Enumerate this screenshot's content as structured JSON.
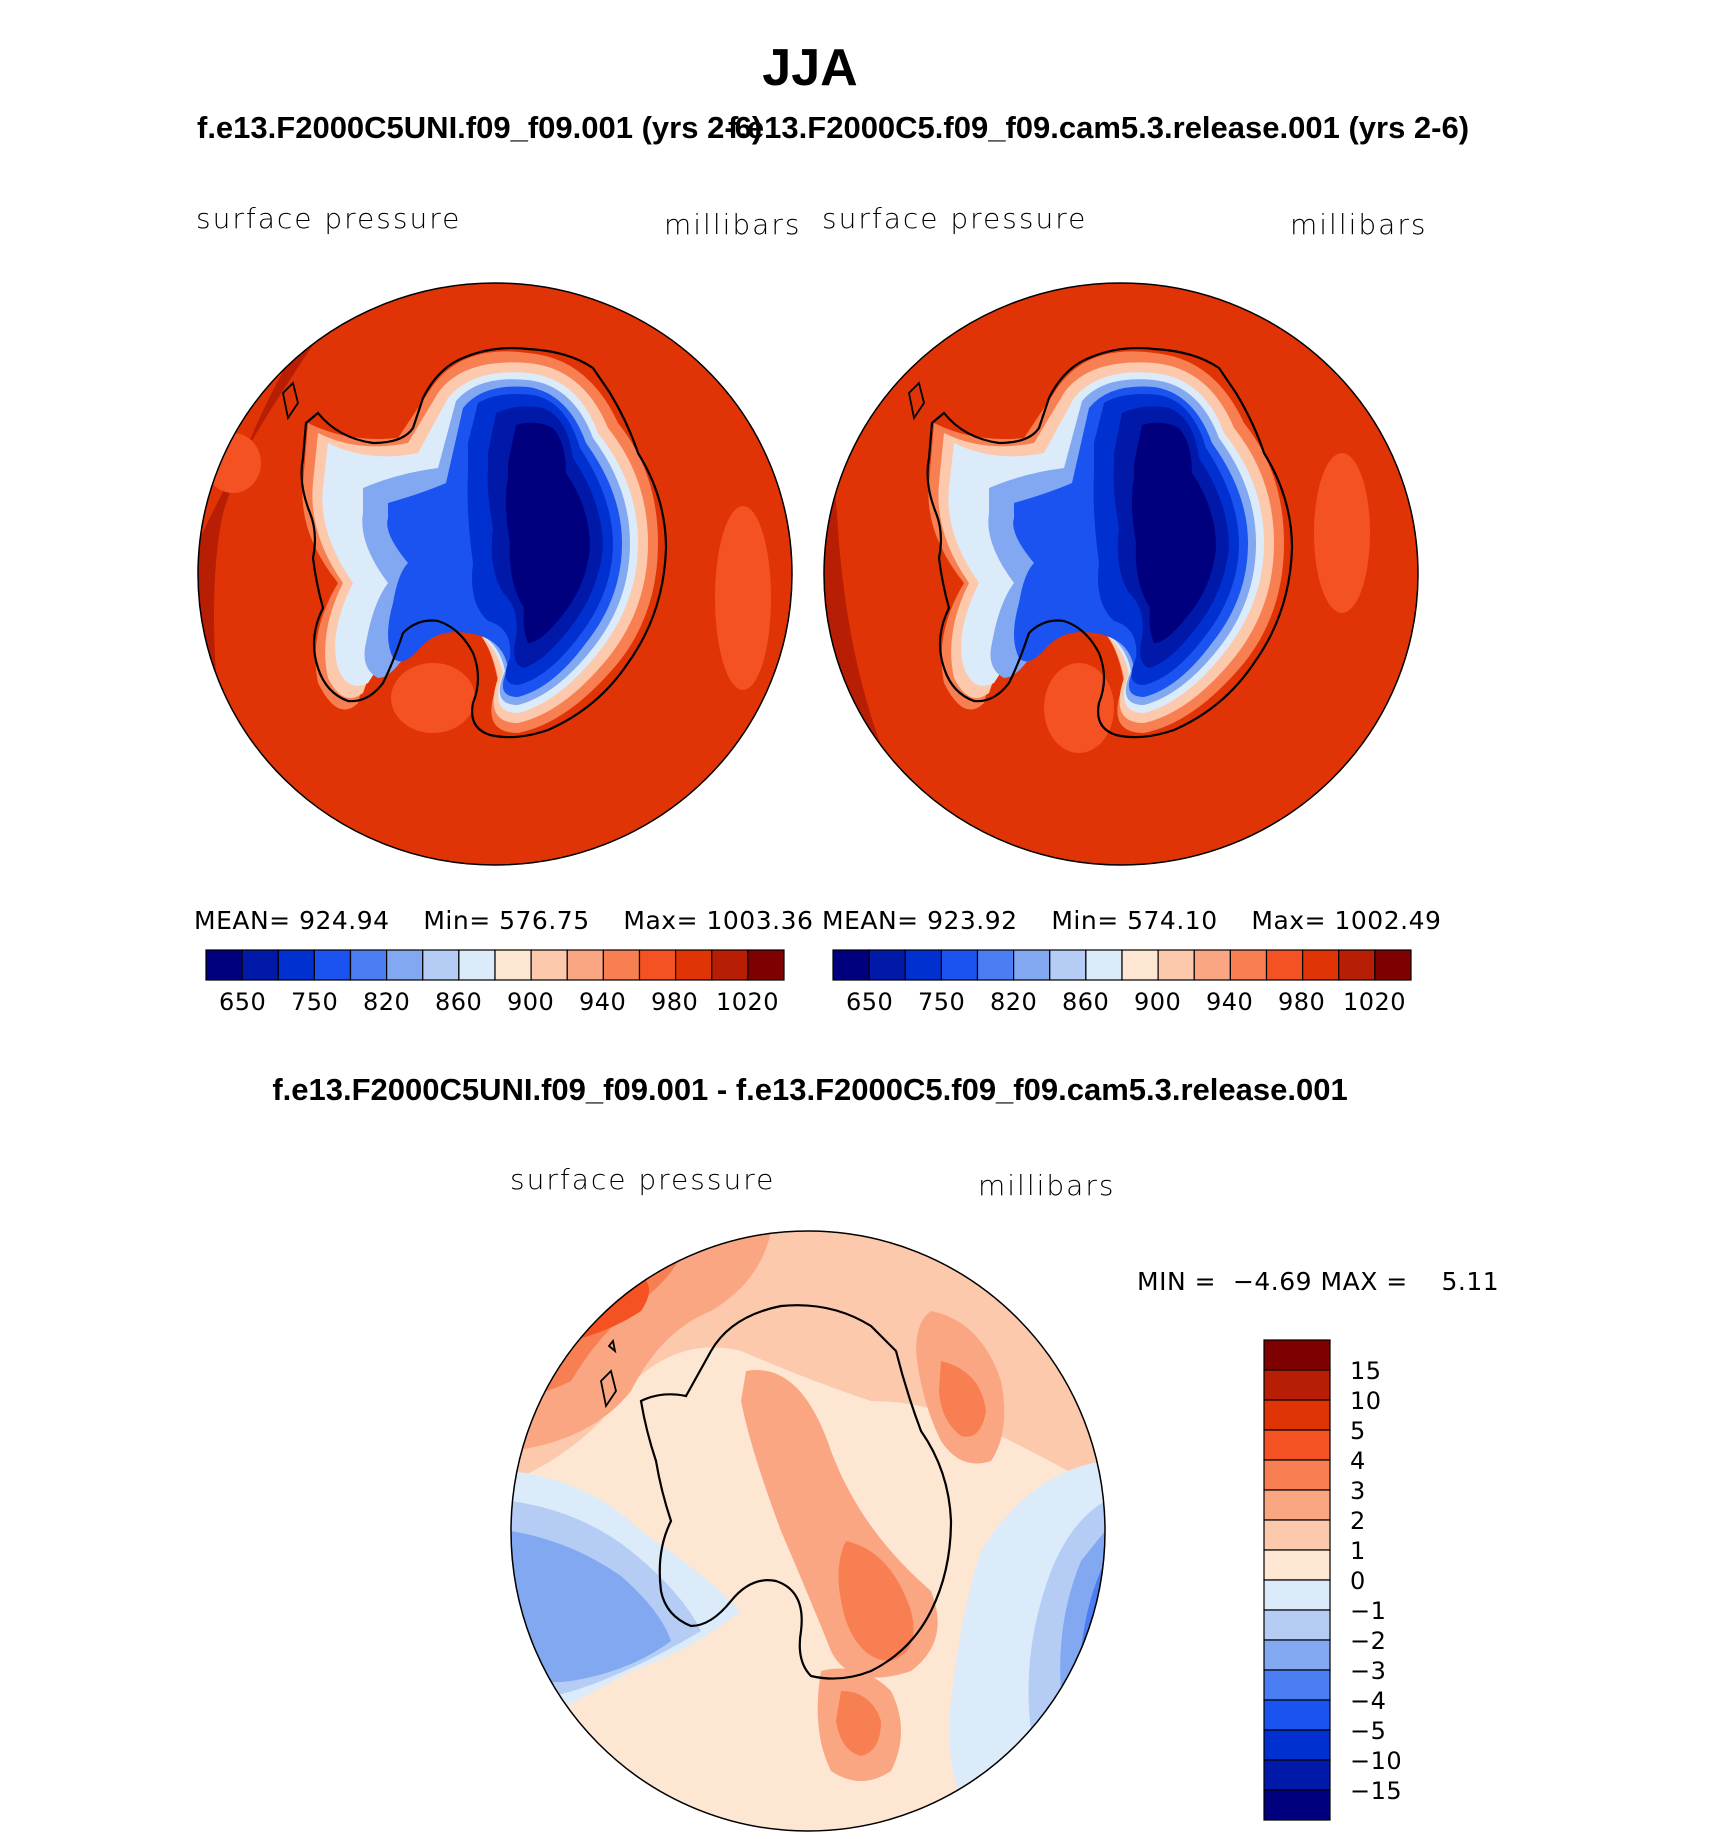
{
  "title": "JJA",
  "panels": [
    {
      "case": "f.e13.F2000C5UNI.f09_f09.001 (yrs 2-6)",
      "variable": "surface pressure",
      "units": "millibars",
      "mean_label": "MEAN=",
      "mean": "924.94",
      "min_label": "Min=",
      "min": "576.75",
      "max_label": "Max=",
      "max": "1003.36",
      "colorbar_ticks": [
        "650",
        "750",
        "820",
        "860",
        "900",
        "940",
        "980",
        "1020"
      ]
    },
    {
      "case": "f.e13.F2000C5.f09_f09.cam5.3.release.001 (yrs 2-6)",
      "variable": "surface pressure",
      "units": "millibars",
      "mean_label": "MEAN=",
      "mean": "923.92",
      "min_label": "Min=",
      "min": "574.10",
      "max_label": "Max=",
      "max": "1002.49",
      "colorbar_ticks": [
        "650",
        "750",
        "820",
        "860",
        "900",
        "940",
        "980",
        "1020"
      ]
    }
  ],
  "difference": {
    "title": "f.e13.F2000C5UNI.f09_f09.001 - f.e13.F2000C5.f09_f09.cam5.3.release.001",
    "variable": "surface pressure",
    "units": "millibars",
    "min_label": "MIN =",
    "min": "−4.69",
    "max_label": "MAX =",
    "max": "5.11",
    "colorbar_labels": [
      "15",
      "10",
      "5",
      "4",
      "3",
      "2",
      "1",
      "0",
      "−1",
      "−2",
      "−3",
      "−4",
      "−5",
      "−10",
      "−15"
    ]
  },
  "colors": {
    "abs_scale": [
      "#00007f",
      "#0019a8",
      "#0030d0",
      "#1a53f0",
      "#4a7ef2",
      "#82a8f2",
      "#b5cdf5",
      "#dcebfa",
      "#fde6d2",
      "#fcc9ad",
      "#faa683",
      "#f77f52",
      "#f45223",
      "#e03406",
      "#b81e04",
      "#7f0000"
    ],
    "diff_scale": [
      "#7f0000",
      "#b81e04",
      "#e03406",
      "#f45223",
      "#f77f52",
      "#faa683",
      "#fcc9ad",
      "#fde6d2",
      "#dcebfa",
      "#b5cdf5",
      "#82a8f2",
      "#4a7ef2",
      "#1a53f0",
      "#0030d0",
      "#0019a8",
      "#00007f"
    ]
  }
}
